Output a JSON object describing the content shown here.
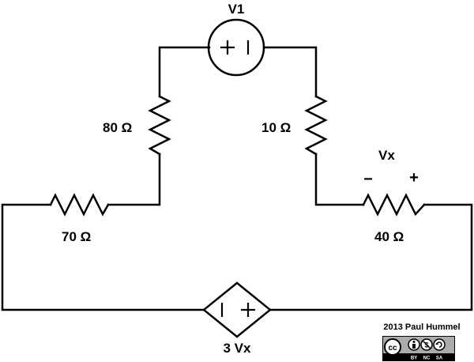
{
  "diagram": {
    "source_label": "V1",
    "dependent_source_label": "3 Vx",
    "resistors": {
      "left_vertical": "80 Ω",
      "right_vertical": "10 Ω",
      "bottom_left": "70 Ω",
      "bottom_right": "40 Ω"
    },
    "voltage_label": "Vx",
    "polarity_minus": "−",
    "polarity_plus": "+"
  },
  "credit": {
    "text": "2013 Paul Hummel",
    "license_badge": {
      "icons": [
        "cc-icon",
        "by-icon",
        "nc-icon",
        "sa-icon"
      ],
      "labels": [
        "BY",
        "NC",
        "SA"
      ]
    }
  }
}
